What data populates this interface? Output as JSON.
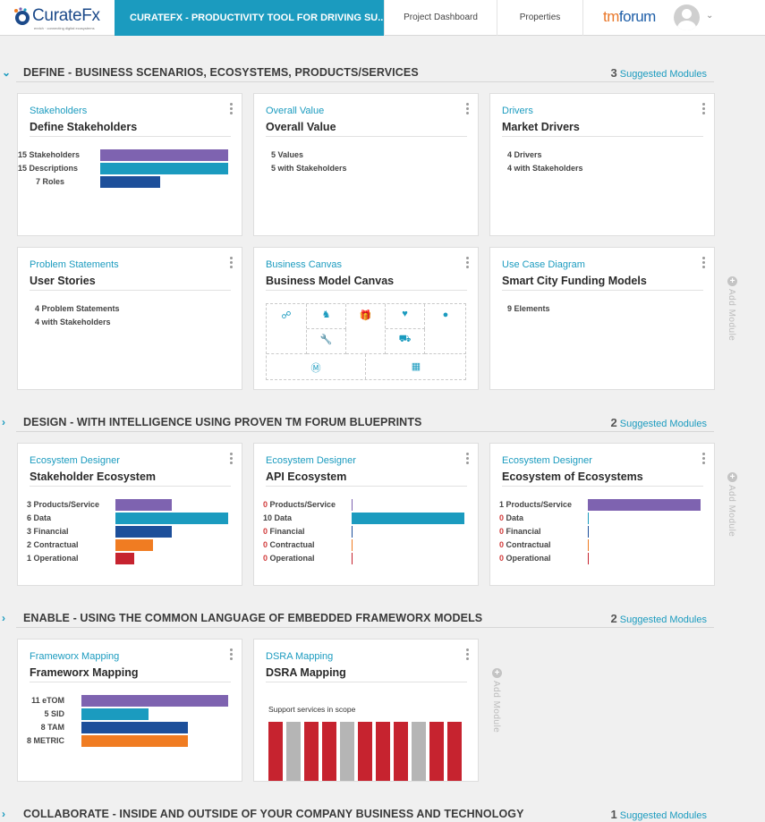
{
  "header": {
    "logo_name": "CurateFx",
    "logo_tagline": "enrich · connecting digital ecosystems",
    "project_title": "CURATEFX - PRODUCTIVITY TOOL FOR DRIVING SU...",
    "nav_dashboard": "Project Dashboard",
    "nav_properties": "Properties",
    "brand_tm": "tm",
    "brand_forum": "forum"
  },
  "colors": {
    "accent": "#1b9bbf",
    "purple": "#7e63b0",
    "teal": "#1b9bbf",
    "navy": "#1d4f9a",
    "orange": "#f07c22",
    "red": "#c6232f",
    "grey": "#b5b5b5"
  },
  "sections": [
    {
      "title": "DEFINE - BUSINESS SCENARIOS, ECOSYSTEMS, PRODUCTS/SERVICES",
      "count": "3",
      "suggested": "Suggested Modules",
      "expanded": true
    },
    {
      "title": "DESIGN - WITH INTELLIGENCE USING PROVEN TM FORUM BLUEPRINTS",
      "count": "2",
      "suggested": "Suggested Modules",
      "expanded": false
    },
    {
      "title": "ENABLE - USING THE COMMON LANGUAGE OF EMBEDDED FRAMEWORX MODELS",
      "count": "2",
      "suggested": "Suggested Modules",
      "expanded": false
    },
    {
      "title": "COLLABORATE - INSIDE AND OUTSIDE OF YOUR COMPANY BUSINESS AND TECHNOLOGY",
      "count": "1",
      "suggested": "Suggested Modules",
      "expanded": false
    }
  ],
  "add_module": "Add Module",
  "cards": {
    "stakeholders": {
      "category": "Stakeholders",
      "title": "Define Stakeholders",
      "bars": [
        {
          "label": "15 Stakeholders",
          "value": 15,
          "color": "#7e63b0"
        },
        {
          "label": "15 Descriptions",
          "value": 15,
          "color": "#1b9bbf"
        },
        {
          "label": "7 Roles",
          "value": 7,
          "color": "#1d4f9a"
        }
      ],
      "max": 15
    },
    "overall_value": {
      "category": "Overall Value",
      "title": "Overall Value",
      "stats": [
        "5 Values",
        "5 with Stakeholders"
      ]
    },
    "drivers": {
      "category": "Drivers",
      "title": "Market Drivers",
      "stats": [
        "4 Drivers",
        "4 with Stakeholders"
      ]
    },
    "problem": {
      "category": "Problem Statements",
      "title": "User Stories",
      "stats": [
        "4 Problem Statements",
        "4 with Stakeholders"
      ]
    },
    "canvas": {
      "category": "Business Canvas",
      "title": "Business Model Canvas"
    },
    "usecase": {
      "category": "Use Case Diagram",
      "title": "Smart City Funding Models",
      "stats": [
        "9 Elements"
      ]
    },
    "stakeholder_eco": {
      "category": "Ecosystem Designer",
      "title": "Stakeholder Ecosystem",
      "bars": [
        {
          "count": "3",
          "label": "Products/Service",
          "value": 3,
          "color": "#7e63b0"
        },
        {
          "count": "6",
          "label": "Data",
          "value": 6,
          "color": "#1b9bbf"
        },
        {
          "count": "3",
          "label": "Financial",
          "value": 3,
          "color": "#1d4f9a"
        },
        {
          "count": "2",
          "label": "Contractual",
          "value": 2,
          "color": "#f07c22"
        },
        {
          "count": "1",
          "label": "Operational",
          "value": 1,
          "color": "#c6232f"
        }
      ],
      "max": 6
    },
    "api_eco": {
      "category": "Ecosystem Designer",
      "title": "API Ecosystem",
      "bars": [
        {
          "count": "0",
          "label": "Products/Service",
          "value": 0,
          "color": "#7e63b0"
        },
        {
          "count": "10",
          "label": "Data",
          "value": 10,
          "color": "#1b9bbf"
        },
        {
          "count": "0",
          "label": "Financial",
          "value": 0,
          "color": "#1d4f9a"
        },
        {
          "count": "0",
          "label": "Contractual",
          "value": 0,
          "color": "#f07c22"
        },
        {
          "count": "0",
          "label": "Operational",
          "value": 0,
          "color": "#c6232f"
        }
      ],
      "max": 10
    },
    "eco_of_ecos": {
      "category": "Ecosystem Designer",
      "title": "Ecosystem of Ecosystems",
      "bars": [
        {
          "count": "1",
          "label": "Products/Service",
          "value": 1,
          "color": "#7e63b0"
        },
        {
          "count": "0",
          "label": "Data",
          "value": 0,
          "color": "#1b9bbf"
        },
        {
          "count": "0",
          "label": "Financial",
          "value": 0,
          "color": "#1d4f9a"
        },
        {
          "count": "0",
          "label": "Contractual",
          "value": 0,
          "color": "#f07c22"
        },
        {
          "count": "0",
          "label": "Operational",
          "value": 0,
          "color": "#c6232f"
        }
      ],
      "max": 1
    },
    "frameworx": {
      "category": "Frameworx Mapping",
      "title": "Frameworx Mapping",
      "bars": [
        {
          "label": "11 eTOM",
          "value": 11,
          "color": "#7e63b0"
        },
        {
          "label": "5 SID",
          "value": 5,
          "color": "#1b9bbf"
        },
        {
          "label": "8 TAM",
          "value": 8,
          "color": "#1d4f9a"
        },
        {
          "label": "8 METRIC",
          "value": 8,
          "color": "#f07c22"
        }
      ],
      "max": 11
    },
    "dsra": {
      "category": "DSRA Mapping",
      "title": "DSRA Mapping",
      "caption": "Support services in scope",
      "columns": [
        "in",
        "out",
        "in",
        "in",
        "out",
        "in",
        "in",
        "in",
        "out",
        "in",
        "in"
      ]
    }
  }
}
